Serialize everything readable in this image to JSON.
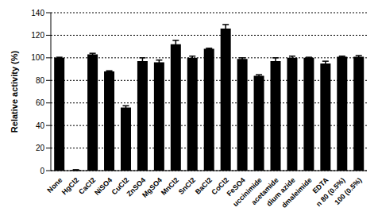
{
  "chart_data": {
    "type": "bar",
    "y_label": "Relative activity (%)",
    "categories": [
      "None",
      "HgCl2",
      "CaCl2",
      "NiSO4",
      "CuCl2",
      "ZnSO4",
      "MgSO4",
      "MnCl2",
      "SnCl2",
      "BaCl2",
      "CoCl2",
      "FeSO4",
      "uccinimide",
      "acetamide",
      "dium azide",
      "dmaleimide",
      "EDTA",
      "n 80 (0.5%)",
      "100 (0.5%)"
    ],
    "values": [
      100,
      0.5,
      103,
      88,
      56,
      97,
      96,
      112,
      100,
      108,
      126,
      99,
      84,
      97,
      100,
      100,
      95,
      101,
      101
    ],
    "errors": [
      0.5,
      0.3,
      1,
      0.5,
      1.5,
      3,
      2,
      3.5,
      1.5,
      0.5,
      3.5,
      1,
      1,
      3,
      1.5,
      0.5,
      2,
      0.5,
      1
    ],
    "color": "#000000",
    "ylim": [
      0,
      140
    ],
    "yticks": [
      0,
      20,
      40,
      60,
      80,
      100,
      120,
      140
    ],
    "grid": true
  }
}
